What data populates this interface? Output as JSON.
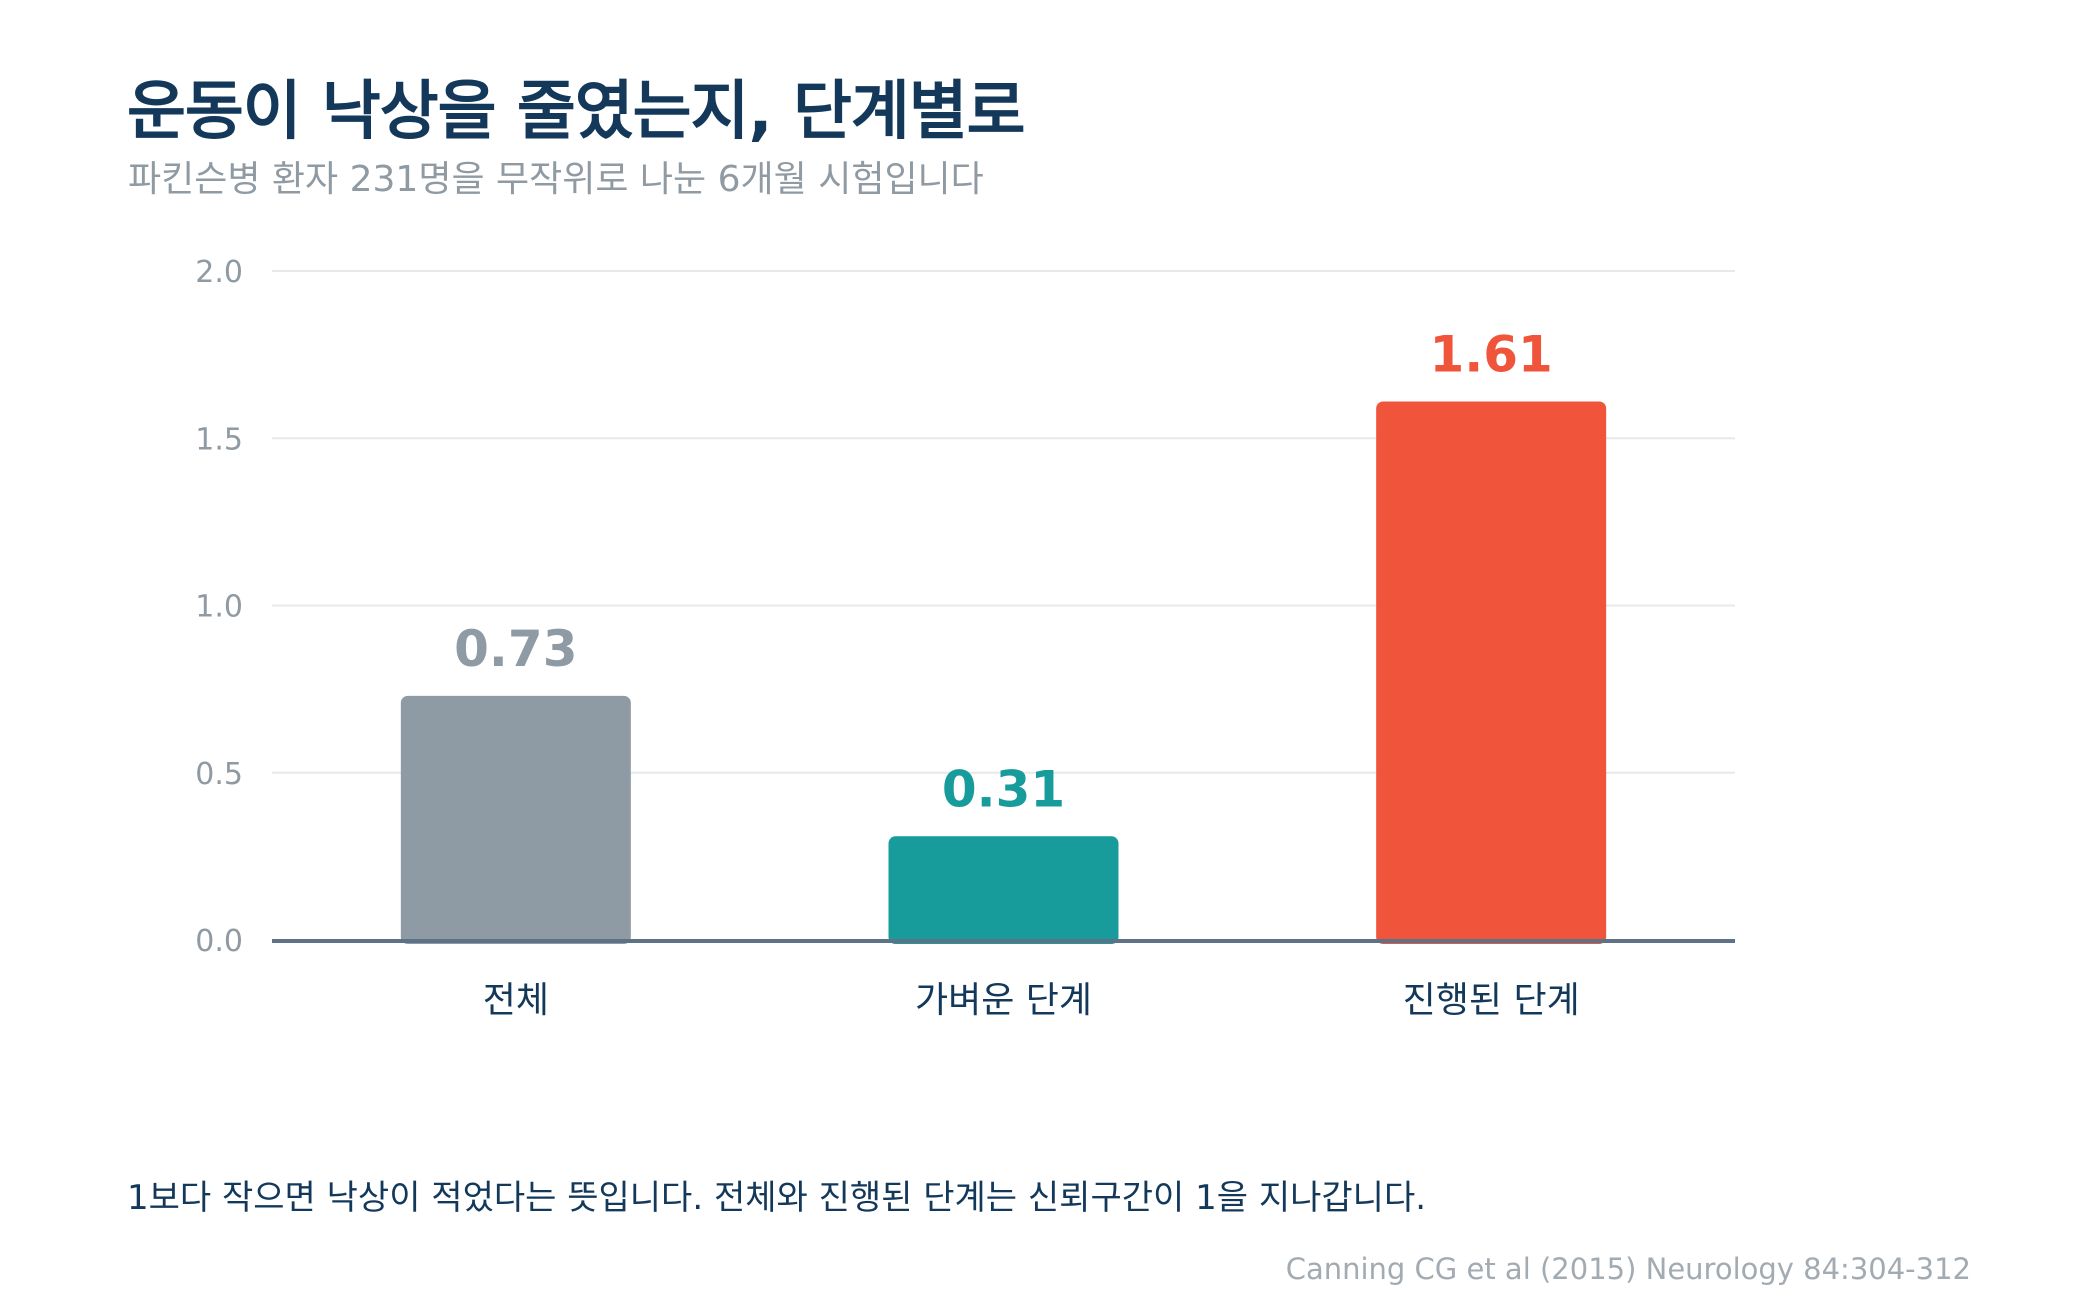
{
  "header": {
    "title": "운동이 낙상을 줄였는지, 단계별로",
    "subtitle": "파킨슨병 환자 231명을 무작위로 나눈 6개월 시험입니다"
  },
  "chart_data": {
    "type": "bar",
    "title": "운동이 낙상을 줄였는지, 단계별로",
    "subtitle": "파킨슨병 환자 231명을 무작위로 나눈 6개월 시험입니다",
    "categories": [
      "전체",
      "가벼운 단계",
      "진행된 단계"
    ],
    "values": [
      0.73,
      0.31,
      1.61
    ],
    "value_labels": [
      "0.73",
      "0.31",
      "1.61"
    ],
    "colors": [
      "#8e9ba5",
      "#179b9b",
      "#f0553b"
    ],
    "ylim": [
      0,
      2.0
    ],
    "yticks": [
      0.0,
      0.5,
      1.0,
      1.5,
      2.0
    ],
    "ytick_labels": [
      "0.0",
      "0.5",
      "1.0",
      "1.5",
      "2.0"
    ],
    "xlabel": "",
    "ylabel": "",
    "grid": true,
    "legend": "none"
  },
  "footer": {
    "note": "1보다 작으면 낙상이 적었다는 뜻입니다. 전체와 진행된 단계는 신뢰구간이 1을 지나갑니다.",
    "source": "Canning CG et al (2015) Neurology 84:304-312"
  },
  "colors": {
    "title": "#13385a",
    "subtitle": "#8f9aa3",
    "grid": "#e6e9ec",
    "axis": "#5d7187",
    "tick_label": "#8f9aa3",
    "category_label": "#13385a"
  }
}
